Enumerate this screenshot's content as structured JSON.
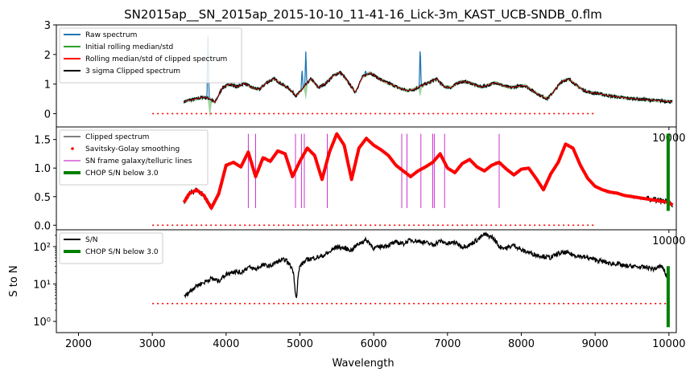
{
  "figure": {
    "title": "SN2015ap__SN_2015ap_2015-10-10_11-41-16_Lick-3m_KAST_UCB-SNDB_0.flm",
    "xlabel": "Wavelength",
    "ylabel_bottom": "S to N"
  },
  "chart_data": [
    {
      "type": "line",
      "panel": "raw-clipping",
      "xlim": [
        1700,
        10100
      ],
      "ylim": [
        -0.45,
        3.0
      ],
      "yticks": [
        "0",
        "1",
        "2",
        "3"
      ],
      "ytick_values": [
        0,
        1,
        2,
        3
      ],
      "xticks": [
        "10000"
      ],
      "xtick_values": [
        10000
      ],
      "legend_position": "top-left",
      "legend": [
        "Raw spectrum",
        "Initial rolling median/std",
        "Rolling median/std of clipped spectrum",
        "3 sigma Clipped spectrum"
      ],
      "colors": {
        "raw": "#1f77b4",
        "initial": "#2ca02c",
        "rolling": "#ff0000",
        "clipped": "#000000",
        "reference": "#ff0000"
      },
      "reference_line": {
        "x": [
          3000,
          9000
        ],
        "y": 0
      },
      "spectrum": {
        "x": [
          3430,
          3500,
          3600,
          3700,
          3780,
          3850,
          3950,
          4050,
          4150,
          4250,
          4350,
          4450,
          4550,
          4650,
          4750,
          4850,
          4950,
          5050,
          5150,
          5250,
          5350,
          5450,
          5550,
          5650,
          5750,
          5850,
          5950,
          6050,
          6150,
          6250,
          6350,
          6450,
          6550,
          6650,
          6750,
          6850,
          6950,
          7050,
          7150,
          7250,
          7350,
          7450,
          7550,
          7650,
          7750,
          7850,
          7950,
          8050,
          8150,
          8250,
          8350,
          8450,
          8550,
          8650,
          8750,
          8850,
          8950,
          9050,
          9150,
          9250,
          9350,
          9450,
          9550,
          9650,
          9750,
          9850,
          9950,
          10050
        ],
        "y": [
          0.4,
          0.46,
          0.5,
          0.56,
          0.5,
          0.38,
          0.88,
          1.0,
          0.9,
          1.03,
          0.88,
          0.82,
          1.05,
          1.18,
          1.0,
          0.85,
          0.6,
          0.88,
          1.18,
          0.88,
          1.02,
          1.28,
          1.4,
          1.08,
          0.72,
          1.25,
          1.38,
          1.22,
          1.08,
          0.98,
          0.86,
          0.78,
          0.82,
          0.95,
          1.05,
          1.18,
          0.92,
          0.88,
          1.06,
          1.08,
          1.0,
          0.9,
          0.96,
          1.05,
          0.95,
          0.88,
          0.92,
          0.95,
          0.78,
          0.62,
          0.5,
          0.78,
          1.1,
          1.16,
          0.95,
          0.78,
          0.7,
          0.68,
          0.62,
          0.58,
          0.55,
          0.52,
          0.5,
          0.48,
          0.46,
          0.44,
          0.42,
          0.4
        ]
      },
      "spikes": [
        {
          "x": 3755,
          "y": 2.8
        },
        {
          "x": 4220,
          "y": 1.05
        },
        {
          "x": 4580,
          "y": 0.9
        },
        {
          "x": 5030,
          "y": 1.55
        },
        {
          "x": 5080,
          "y": 2.1
        },
        {
          "x": 5890,
          "y": 1.45
        },
        {
          "x": 6630,
          "y": 2.3
        }
      ],
      "dips": [
        {
          "x": 3780,
          "y": -0.15
        },
        {
          "x": 5080,
          "y": 0.45
        },
        {
          "x": 6630,
          "y": 0.55
        }
      ]
    },
    {
      "type": "line",
      "panel": "smoothing",
      "xlim": [
        1700,
        10100
      ],
      "ylim": [
        -0.08,
        1.72
      ],
      "yticks": [
        "0.0",
        "0.5",
        "1.0",
        "1.5"
      ],
      "ytick_values": [
        0,
        0.5,
        1.0,
        1.5
      ],
      "xticks": [
        "10000"
      ],
      "xtick_values": [
        10000
      ],
      "legend_position": "top-left",
      "legend": [
        "Clipped spectrum",
        "Savitsky-Golay smoothing",
        "SN frame galaxy/telluric lines",
        "CHOP S/N below 3.0"
      ],
      "colors": {
        "clipped": "#000000",
        "smooth": "#ff0000",
        "lines": "#bf00bf",
        "chop": "#008000",
        "reference": "#ff0000"
      },
      "reference_line": {
        "x": [
          3000,
          9000
        ],
        "y": 0
      },
      "line_positions": [
        4300,
        4400,
        4940,
        5020,
        5060,
        5370,
        6380,
        6450,
        6640,
        6800,
        6820,
        6960,
        7700
      ],
      "line_range": [
        0.3,
        1.6
      ],
      "chop": {
        "x": 9990,
        "y": [
          0.25,
          1.6
        ]
      },
      "spectrum": {
        "x": [
          3430,
          3500,
          3600,
          3700,
          3800,
          3900,
          4000,
          4100,
          4200,
          4300,
          4400,
          4500,
          4600,
          4700,
          4800,
          4900,
          5000,
          5100,
          5200,
          5300,
          5400,
          5500,
          5600,
          5700,
          5800,
          5900,
          6000,
          6100,
          6200,
          6300,
          6400,
          6500,
          6600,
          6700,
          6800,
          6900,
          7000,
          7100,
          7200,
          7300,
          7400,
          7500,
          7600,
          7700,
          7800,
          7900,
          8000,
          8100,
          8200,
          8300,
          8400,
          8500,
          8600,
          8700,
          8800,
          8900,
          9000,
          9100,
          9200,
          9300,
          9400,
          9500,
          9600,
          9700,
          9800,
          9900,
          10000,
          10050
        ],
        "y": [
          0.4,
          0.55,
          0.62,
          0.52,
          0.3,
          0.55,
          1.05,
          1.1,
          1.02,
          1.28,
          0.85,
          1.18,
          1.12,
          1.3,
          1.25,
          0.85,
          1.12,
          1.35,
          1.22,
          0.8,
          1.28,
          1.6,
          1.4,
          0.8,
          1.35,
          1.52,
          1.4,
          1.32,
          1.22,
          1.05,
          0.95,
          0.85,
          0.95,
          1.02,
          1.1,
          1.25,
          1.0,
          0.92,
          1.08,
          1.15,
          1.02,
          0.95,
          1.05,
          1.1,
          0.98,
          0.88,
          0.98,
          1.0,
          0.82,
          0.62,
          0.9,
          1.1,
          1.42,
          1.35,
          1.05,
          0.82,
          0.68,
          0.62,
          0.58,
          0.56,
          0.52,
          0.5,
          0.48,
          0.46,
          0.44,
          0.42,
          0.4,
          0.35
        ]
      }
    },
    {
      "type": "line",
      "panel": "signal-to-noise",
      "xlim": [
        1700,
        10100
      ],
      "ylim_log10": [
        -0.3,
        2.45
      ],
      "yscale": "log",
      "yticks": [
        "10⁰",
        "10¹",
        "10²"
      ],
      "ytick_values": [
        1,
        10,
        100
      ],
      "xticks": [
        "2000",
        "3000",
        "4000",
        "5000",
        "6000",
        "7000",
        "8000",
        "9000",
        "10000"
      ],
      "xtick_values": [
        2000,
        3000,
        4000,
        5000,
        6000,
        7000,
        8000,
        9000,
        10000
      ],
      "legend_position": "top-left",
      "legend": [
        "S/N",
        "CHOP S/N below 3.0"
      ],
      "colors": {
        "sn": "#000000",
        "chop": "#008000",
        "reference": "#ff0000"
      },
      "reference_line": {
        "x": [
          3000,
          10000
        ],
        "y": 3
      },
      "chop": {
        "x": 9990,
        "y": [
          0.7,
          30
        ]
      },
      "sn": {
        "x": [
          3430,
          3500,
          3600,
          3700,
          3800,
          3900,
          4000,
          4100,
          4200,
          4300,
          4400,
          4500,
          4600,
          4700,
          4800,
          4900,
          4940,
          4960,
          5000,
          5100,
          5200,
          5300,
          5400,
          5500,
          5600,
          5700,
          5800,
          5900,
          6000,
          6100,
          6200,
          6300,
          6400,
          6500,
          6600,
          6700,
          6800,
          6900,
          7000,
          7100,
          7200,
          7300,
          7400,
          7500,
          7600,
          7700,
          7800,
          7900,
          8000,
          8100,
          8200,
          8300,
          8400,
          8500,
          8600,
          8700,
          8800,
          8900,
          9000,
          9100,
          9200,
          9300,
          9400,
          9500,
          9600,
          9700,
          9800,
          9900,
          9950,
          10000
        ],
        "y": [
          4.5,
          6,
          9,
          11,
          14,
          12,
          18,
          22,
          20,
          28,
          25,
          32,
          30,
          40,
          45,
          25,
          5,
          5,
          30,
          45,
          50,
          55,
          70,
          100,
          90,
          80,
          120,
          150,
          90,
          100,
          110,
          130,
          120,
          150,
          140,
          130,
          110,
          140,
          120,
          130,
          100,
          110,
          150,
          210,
          180,
          100,
          90,
          110,
          80,
          70,
          60,
          55,
          50,
          65,
          70,
          60,
          55,
          50,
          45,
          40,
          35,
          35,
          30,
          30,
          28,
          28,
          25,
          30,
          20,
          10
        ]
      }
    }
  ]
}
